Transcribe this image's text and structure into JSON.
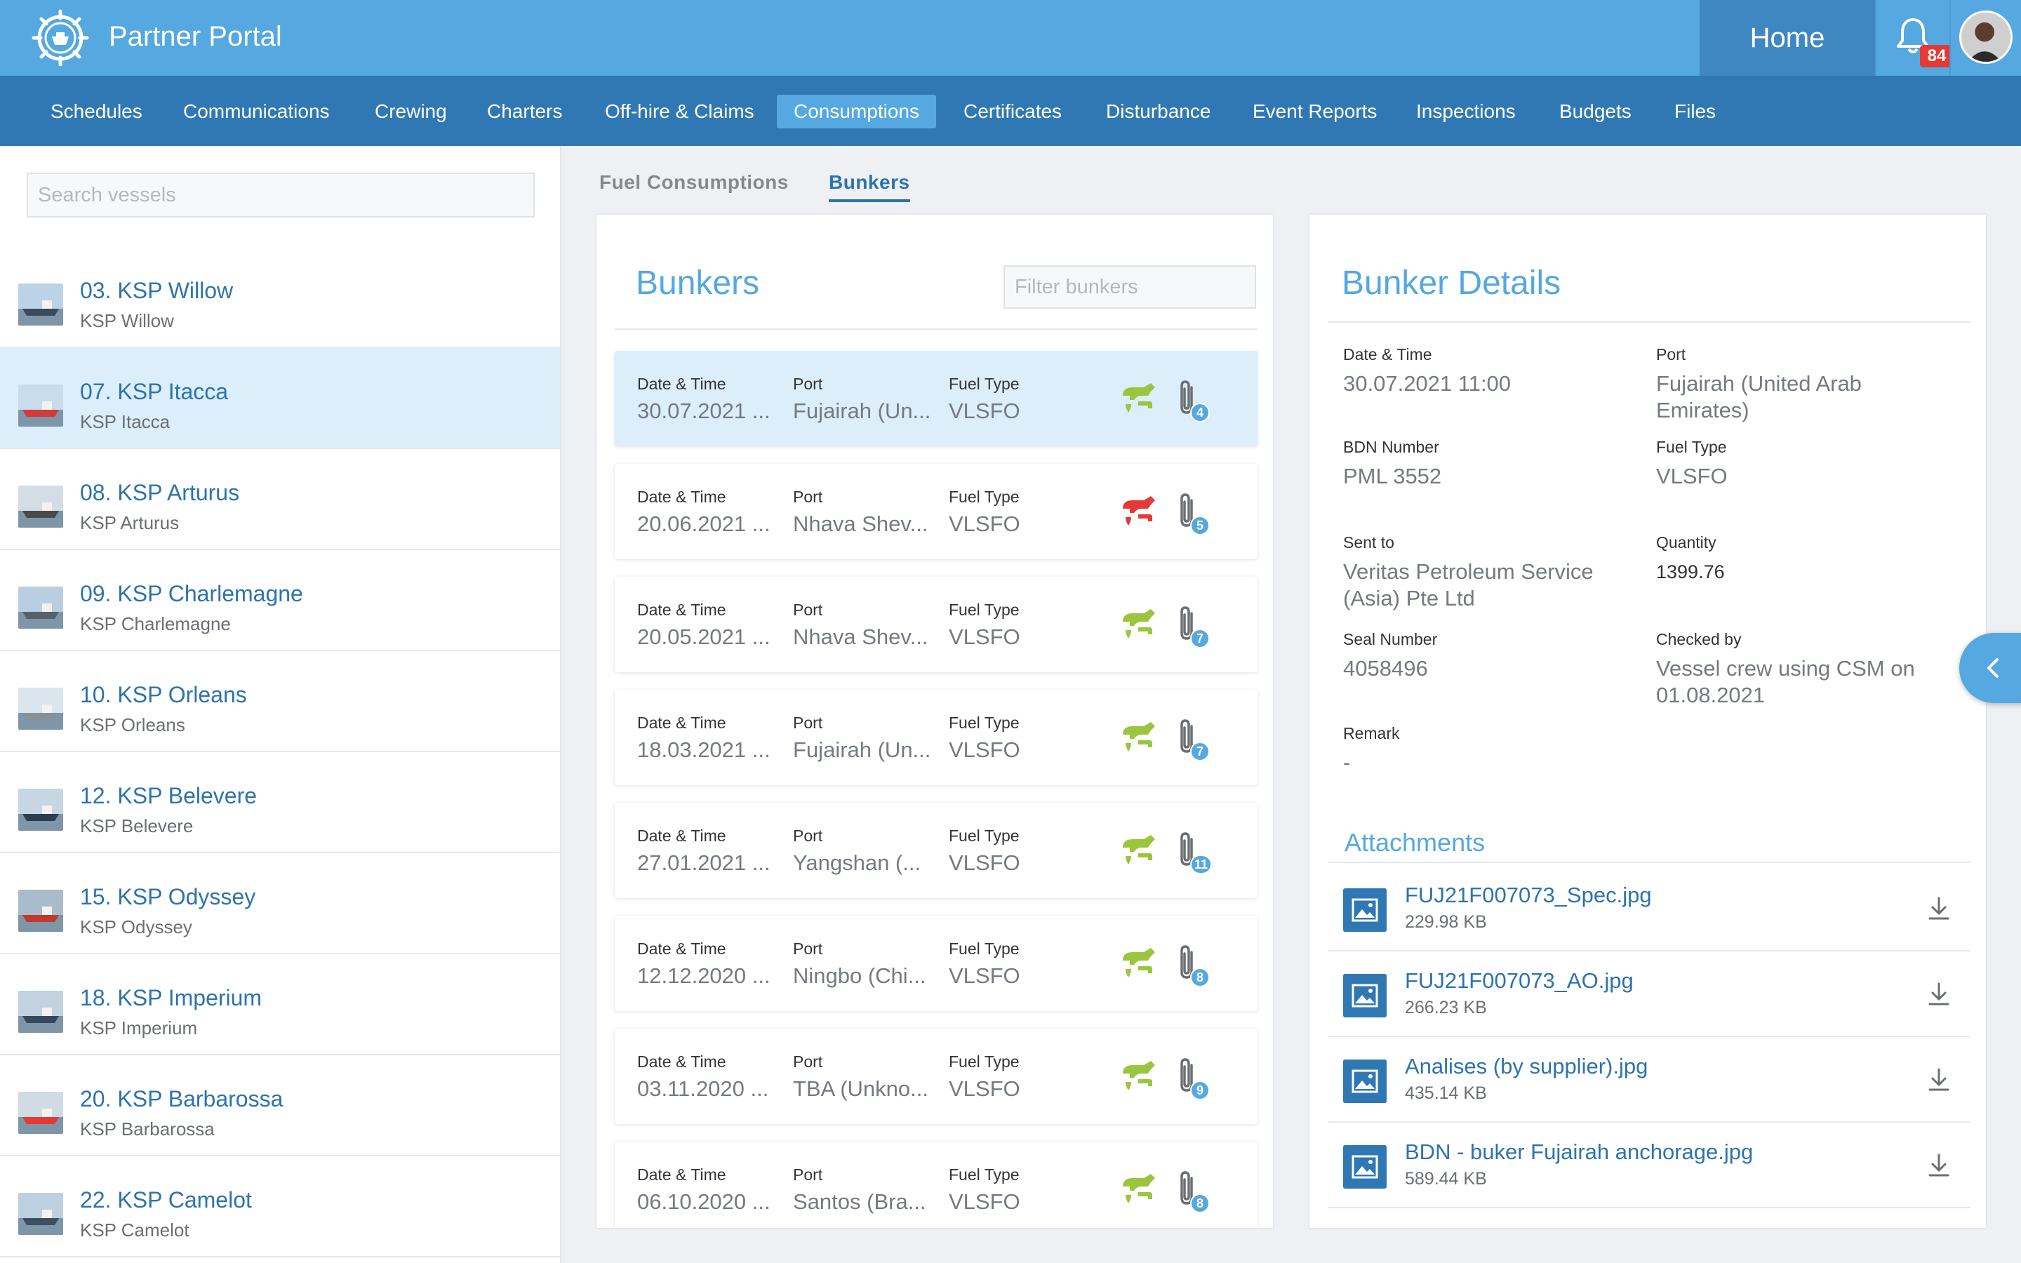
{
  "header": {
    "app_title": "Partner Portal",
    "home_label": "Home",
    "notification_count": "84",
    "logo_icon": "ship-wheel-icon",
    "bell_icon": "bell-icon"
  },
  "nav": {
    "items": [
      "Schedules",
      "Communications",
      "Crewing",
      "Charters",
      "Off-hire & Claims",
      "Consumptions",
      "Certificates",
      "Disturbance",
      "Event Reports",
      "Inspections",
      "Budgets",
      "Files"
    ],
    "active": "Consumptions"
  },
  "sidebar": {
    "search_placeholder": "Search vessels",
    "vessels": [
      {
        "name": "03. KSP Willow",
        "sub": "KSP Willow"
      },
      {
        "name": "07. KSP Itacca",
        "sub": "KSP Itacca"
      },
      {
        "name": "08. KSP Arturus",
        "sub": "KSP Arturus"
      },
      {
        "name": "09. KSP Charlemagne",
        "sub": "KSP Charlemagne"
      },
      {
        "name": "10. KSP Orleans",
        "sub": "KSP Orleans"
      },
      {
        "name": "12. KSP Belevere",
        "sub": "KSP Belevere"
      },
      {
        "name": "15. KSP Odyssey",
        "sub": "KSP Odyssey"
      },
      {
        "name": "18. KSP Imperium",
        "sub": "KSP Imperium"
      },
      {
        "name": "20. KSP Barbarossa",
        "sub": "KSP Barbarossa"
      },
      {
        "name": "22. KSP Camelot",
        "sub": "KSP Camelot"
      }
    ],
    "active_index": 1
  },
  "subtabs": {
    "fuel": "Fuel Consumptions",
    "bunkers": "Bunkers",
    "active": "Bunkers"
  },
  "bunkers": {
    "title": "Bunkers",
    "filter_placeholder": "Filter bunkers",
    "labels": {
      "date": "Date & Time",
      "port": "Port",
      "fuel": "Fuel Type"
    },
    "rows": [
      {
        "date": "30.07.2021 ...",
        "port": "Fujairah (Un...",
        "fuel": "VLSFO",
        "pump_color": "#9bc53d",
        "attachments": "4"
      },
      {
        "date": "20.06.2021 ...",
        "port": "Nhava Shev...",
        "fuel": "VLSFO",
        "pump_color": "#e53935",
        "attachments": "5"
      },
      {
        "date": "20.05.2021 ...",
        "port": "Nhava Shev...",
        "fuel": "VLSFO",
        "pump_color": "#9bc53d",
        "attachments": "7"
      },
      {
        "date": "18.03.2021 ...",
        "port": "Fujairah (Un...",
        "fuel": "VLSFO",
        "pump_color": "#9bc53d",
        "attachments": "7"
      },
      {
        "date": "27.01.2021 ...",
        "port": "Yangshan (...",
        "fuel": "VLSFO",
        "pump_color": "#9bc53d",
        "attachments": "11"
      },
      {
        "date": "12.12.2020 ...",
        "port": "Ningbo (Chi...",
        "fuel": "VLSFO",
        "pump_color": "#9bc53d",
        "attachments": "8"
      },
      {
        "date": "03.11.2020 ...",
        "port": "TBA (Unkno...",
        "fuel": "VLSFO",
        "pump_color": "#9bc53d",
        "attachments": "9"
      },
      {
        "date": "06.10.2020 ...",
        "port": "Santos (Bra...",
        "fuel": "VLSFO",
        "pump_color": "#9bc53d",
        "attachments": "8"
      }
    ],
    "active_index": 0
  },
  "details": {
    "title": "Bunker Details",
    "date_label": "Date & Time",
    "date": "30.07.2021 11:00",
    "port_label": "Port",
    "port": "Fujairah (United Arab Emirates)",
    "bdn_label": "BDN Number",
    "bdn": "PML 3552",
    "fuel_label": "Fuel Type",
    "fuel": "VLSFO",
    "sent_label": "Sent to",
    "sent": "Veritas Petroleum Service (Asia) Pte Ltd",
    "qty_label": "Quantity",
    "qty": "1399.76",
    "seal_label": "Seal Number",
    "seal": "4058496",
    "checked_label": "Checked by",
    "checked": "Vessel crew using CSM on 01.08.2021",
    "remark_label": "Remark",
    "remark": "-",
    "attachments_title": "Attachments",
    "attachments": [
      {
        "name": "FUJ21F007073_Spec.jpg",
        "size": "229.98 KB"
      },
      {
        "name": "FUJ21F007073_AO.jpg",
        "size": "266.23 KB"
      },
      {
        "name": "Analises (by supplier).jpg",
        "size": "435.14 KB"
      },
      {
        "name": "BDN - buker Fujairah anchorage.jpg",
        "size": "589.44 KB"
      }
    ]
  },
  "colors": {
    "brand": "#55a8e0",
    "nav": "#2f78b4",
    "link": "#2d73ad",
    "ok": "#9bc53d",
    "alert": "#e53935"
  }
}
